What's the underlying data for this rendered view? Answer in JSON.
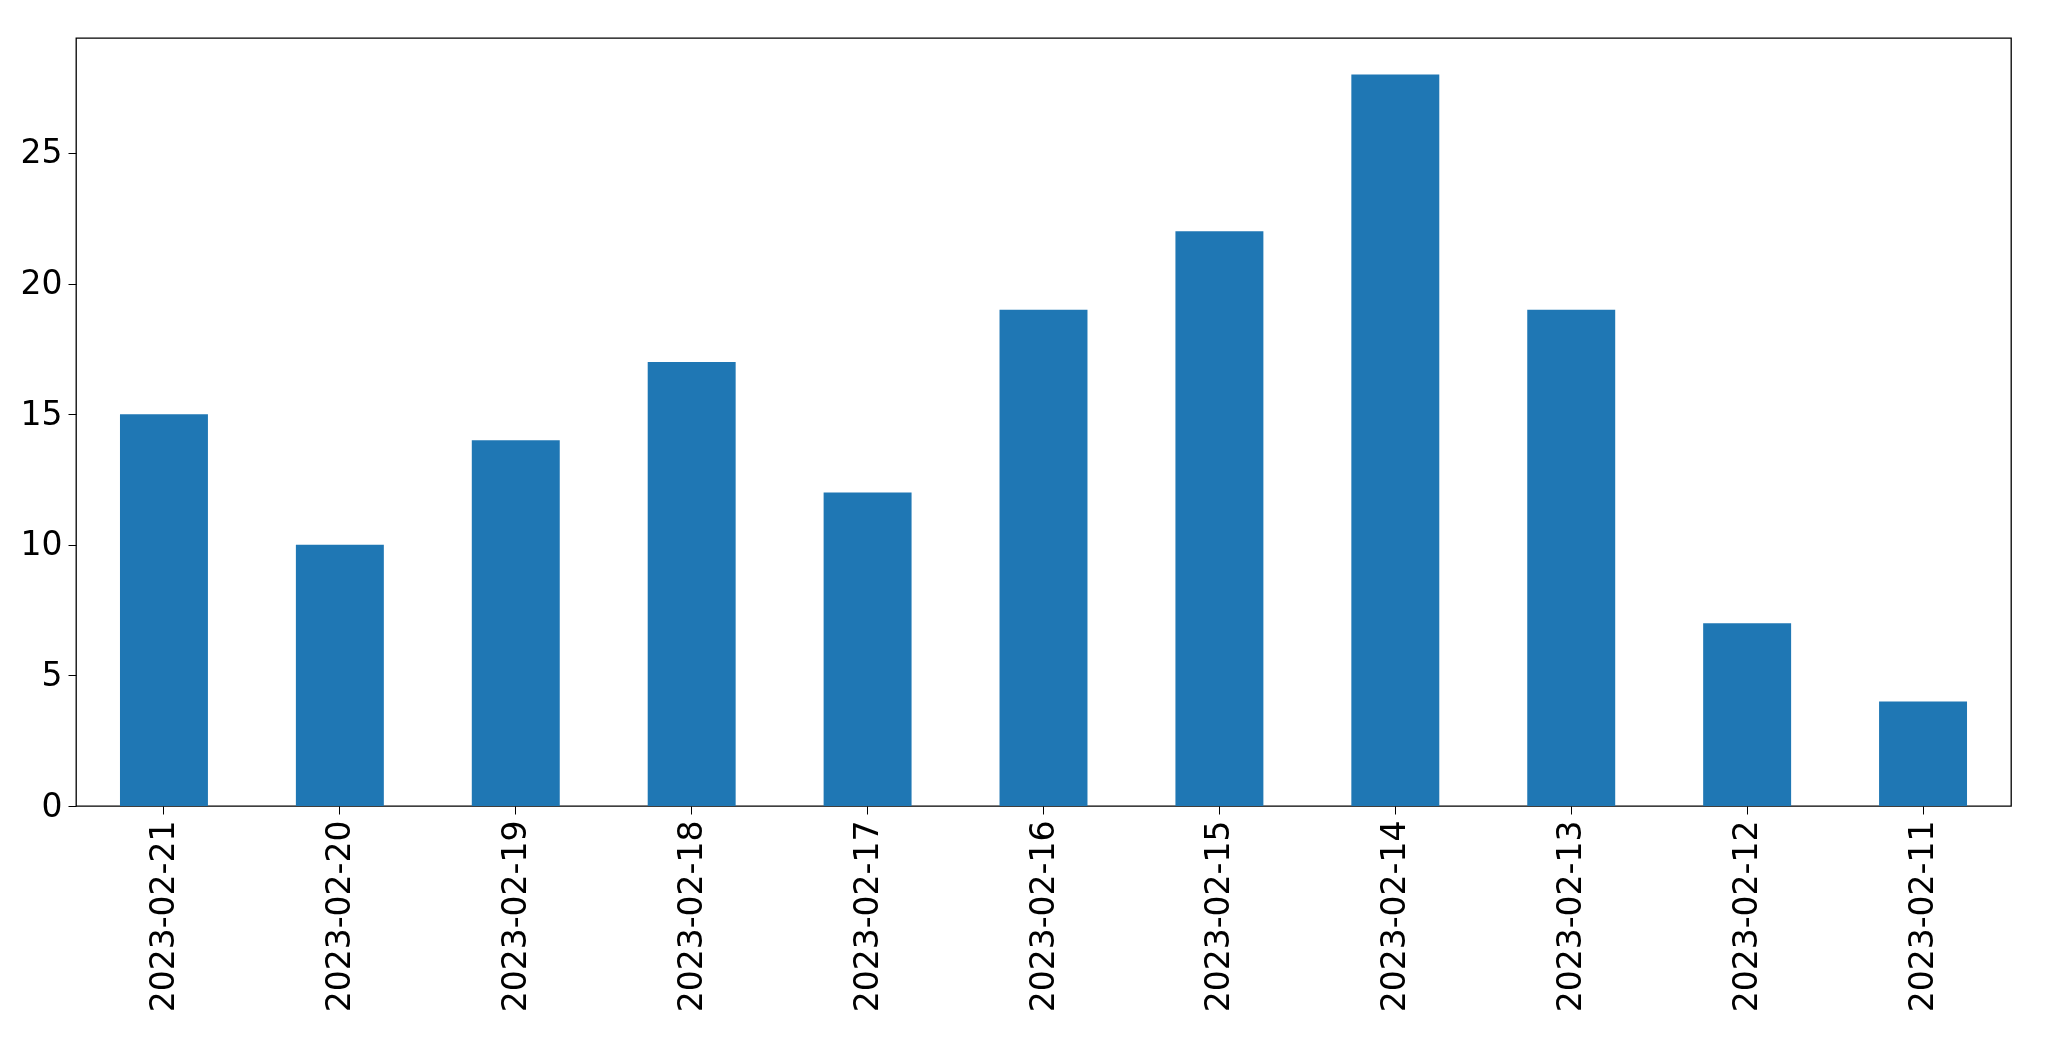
{
  "chart_data": {
    "type": "bar",
    "categories": [
      "2023-02-21",
      "2023-02-20",
      "2023-02-19",
      "2023-02-18",
      "2023-02-17",
      "2023-02-16",
      "2023-02-15",
      "2023-02-14",
      "2023-02-13",
      "2023-02-12",
      "2023-02-11"
    ],
    "values": [
      15,
      10,
      14,
      17,
      12,
      19,
      22,
      28,
      19,
      7,
      4
    ],
    "color": "#1f77b4",
    "ylim": [
      0,
      29.4
    ],
    "yticks": [
      0,
      5,
      10,
      15,
      20,
      25
    ],
    "grid": false
  }
}
